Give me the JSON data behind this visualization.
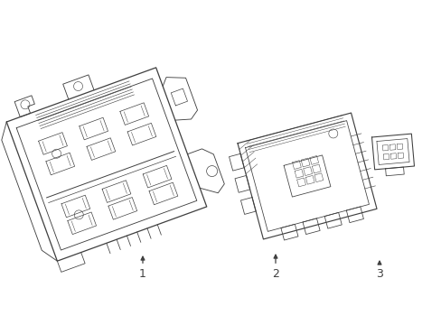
{
  "background_color": "#ffffff",
  "line_color": "#404040",
  "line_width": 0.7,
  "labels": [
    "1",
    "2",
    "3"
  ],
  "fig_w": 4.89,
  "fig_h": 3.6,
  "dpi": 100
}
